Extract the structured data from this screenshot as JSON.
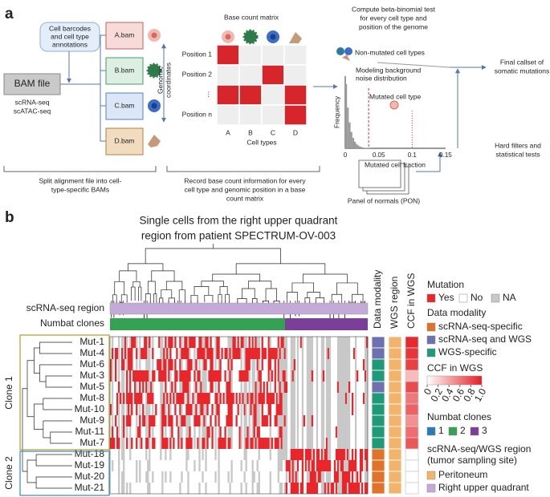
{
  "panel_a": {
    "label": "a",
    "annotations_box": [
      "Cell barcodes",
      "and cell type",
      "annotations"
    ],
    "bam_file": "BAM file",
    "inputs": [
      "scRNA-seq",
      "scATAC-seq"
    ],
    "bams": [
      "A.bam",
      "B.bam",
      "C.bam",
      "D.bam"
    ],
    "matrix": {
      "title": "Base count matrix",
      "row_axis": [
        "Genomic",
        "coordinates"
      ],
      "rows": [
        "Position 1",
        "Position 2",
        "⋮",
        "Position n"
      ],
      "columns": [
        "A",
        "B",
        "C",
        "D"
      ],
      "column_axis": "Cell types"
    },
    "test": [
      "Compute beta-binomial test",
      "for every cell type and",
      "position of the genome"
    ],
    "non_mutated": "Non-mutated cell types",
    "modeling": [
      "Modeling background",
      "noise distribution"
    ],
    "mutated": "Mutated cell type",
    "plot": {
      "ylabel": "Frequency",
      "xlabel": "Mutated cell fraction",
      "xticks": [
        "0",
        "0.05",
        "0.1",
        "0.15"
      ]
    },
    "final_callset": [
      "Final callset of",
      "somatic mutations"
    ],
    "hard_filters": [
      "Hard filters and",
      "statistical tests"
    ],
    "pon": "Panel of normals (PON)",
    "captions": [
      [
        "Split alignment file into cell-",
        "type-specific BAMs"
      ],
      [
        "Record base count information for every",
        "cell type and genomic position in a base",
        "count matrix"
      ]
    ]
  },
  "panel_b": {
    "label": "b",
    "title": [
      "Single cells from the right upper quadrant",
      "region from patient SPECTRUM-OV-003"
    ],
    "track_labels": [
      "scRNA-seq region",
      "Numbat clones"
    ],
    "annotation_columns": [
      "Data modality",
      "WGS region",
      "CCF in WGS"
    ],
    "clones": [
      "Clone 1",
      "Clone 2"
    ],
    "rows": [
      {
        "label": "Mut-1",
        "modality": 1,
        "ccf": 0.95
      },
      {
        "label": "Mut-4",
        "modality": 1,
        "ccf": 0.9
      },
      {
        "label": "Mut-6",
        "modality": 2,
        "ccf": 0.85
      },
      {
        "label": "Mut-3",
        "modality": 2,
        "ccf": 0.3
      },
      {
        "label": "Mut-5",
        "modality": 1,
        "ccf": 0.8
      },
      {
        "label": "Mut-8",
        "modality": 2,
        "ccf": 0.6
      },
      {
        "label": "Mut-10",
        "modality": 2,
        "ccf": 0.7
      },
      {
        "label": "Mut-9",
        "modality": 2,
        "ccf": 0.5
      },
      {
        "label": "Mut-11",
        "modality": 2,
        "ccf": 0.65
      },
      {
        "label": "Mut-7",
        "modality": 2,
        "ccf": 0.75
      },
      {
        "label": "Mut-18",
        "modality": 0,
        "ccf": null
      },
      {
        "label": "Mut-19",
        "modality": 0,
        "ccf": null
      },
      {
        "label": "Mut-20",
        "modality": 0,
        "ccf": null
      },
      {
        "label": "Mut-21",
        "modality": 0,
        "ccf": null
      }
    ],
    "legends": {
      "mutation": {
        "title": "Mutation",
        "items": [
          {
            "label": "Yes",
            "color": "#e8262b"
          },
          {
            "label": "No",
            "color": "#ffffff"
          },
          {
            "label": "NA",
            "color": "#c8c8c8"
          }
        ]
      },
      "data_modality": {
        "title": "Data modality",
        "items": [
          {
            "label": "scRNA-seq-specific",
            "color": "#e0722a"
          },
          {
            "label": "scRNA-seq and WGS",
            "color": "#6e70b0"
          },
          {
            "label": "WGS-specific",
            "color": "#1e9a78"
          }
        ]
      },
      "ccf": {
        "title": "CCF in WGS",
        "ticks": [
          0,
          0.2,
          0.4,
          0.6,
          0.8,
          {
            "value": 1,
            "label": "1.0"
          }
        ]
      },
      "numbat": {
        "title": "Numbat clones",
        "items": [
          {
            "label": "1",
            "color": "#2b7bba"
          },
          {
            "label": "2",
            "color": "#35a153"
          },
          {
            "label": "3",
            "color": "#7b3f99"
          }
        ]
      },
      "region": {
        "title": [
          "scRNA-seq/WGS region",
          "(tumor sampling site)"
        ],
        "items": [
          {
            "label": "Peritoneum",
            "color": "#f2b46c"
          },
          {
            "label": "Right upper quadrant",
            "color": "#c4aad6"
          }
        ]
      }
    }
  }
}
